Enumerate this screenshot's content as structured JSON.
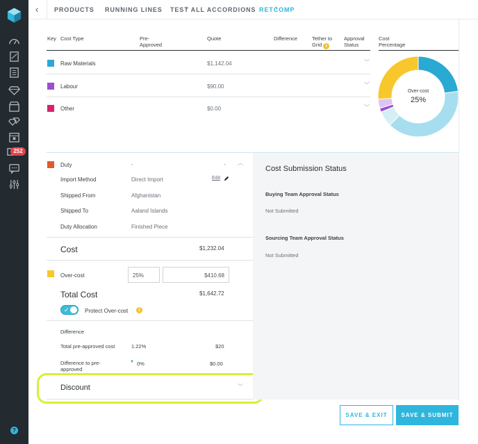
{
  "breadcrumb": {
    "items": [
      "PRODUCTS",
      "RUNNING LINES",
      "TEST ALL ACCORDIONS",
      "RETCOMP"
    ]
  },
  "sidebar": {
    "icons": [
      "dashboard-icon",
      "reports-icon",
      "catalog-icon",
      "diamond-icon",
      "store-icon",
      "gems-icon",
      "calendar-icon",
      "inbox-icon",
      "chat-icon",
      "sliders-icon"
    ],
    "badge_count": "252",
    "help": "?"
  },
  "table": {
    "headers": {
      "key": "Key",
      "cost_type": "Cost Type",
      "pre_approved": "Pre-Approved",
      "quote": "Quote",
      "difference": "Difference",
      "tether": "Tether to Grid",
      "approval": "Approval Status",
      "cost_percentage": "Cost Percentage"
    },
    "rows": [
      {
        "name": "Raw Materials",
        "quote": "$1,142.04",
        "color": "#2aa9d2"
      },
      {
        "name": "Labour",
        "quote": "$90.00",
        "color": "#9a4fd1"
      },
      {
        "name": "Other",
        "quote": "$0.00",
        "color": "#d6246b"
      }
    ]
  },
  "donut": {
    "center_label": "Over-cost",
    "center_value": "25%",
    "segments": [
      {
        "label": "Raw Materials",
        "pct": 22,
        "color": "#2aa9d2"
      },
      {
        "label": "Raw Materials (light)",
        "pct": 38,
        "color": "#a6def0"
      },
      {
        "label": "Gap",
        "pct": 6,
        "color": "#d5eef6"
      },
      {
        "label": "Labour",
        "pct": 1.5,
        "color": "#9a4fd1"
      },
      {
        "label": "Labour (light)",
        "pct": 3.5,
        "color": "#dcc6f1"
      },
      {
        "label": "Over-cost",
        "pct": 25,
        "color": "#f8c72c"
      }
    ]
  },
  "duty": {
    "label": "Duty",
    "color": "#e05a2b",
    "pre_approved": "-",
    "quote": "-",
    "fields": [
      {
        "label": "Import Method",
        "value": "Direct Import"
      },
      {
        "label": "Shipped From",
        "value": "Afghanistan"
      },
      {
        "label": "Shipped To",
        "value": "Aaland Islands"
      },
      {
        "label": "Duty Allocation",
        "value": "Finished Piece"
      }
    ],
    "edit_label": "Edit"
  },
  "cost": {
    "label": "Cost",
    "value": "$1,232.04"
  },
  "overcost": {
    "label": "Over-cost",
    "color": "#f8c72c",
    "percent": "25%",
    "amount": "$410.68"
  },
  "total": {
    "label": "Total Cost",
    "value": "$1,642.72"
  },
  "protect": {
    "label": "Protect Over-cost",
    "checked": true
  },
  "difference": {
    "title": "Difference",
    "rows": [
      {
        "label": "Total pre-approved cost",
        "pct": "1.22%",
        "amount": "$20"
      },
      {
        "label": "Difference to pre-approved",
        "pct": "0%",
        "amount": "$0.00"
      }
    ]
  },
  "discount": {
    "label": "Discount"
  },
  "status": {
    "title": "Cost Submission Status",
    "buying_label": "Buying Team Approval Status",
    "buying_value": "Not Submitted",
    "sourcing_label": "Sourcing Team Approval Status",
    "sourcing_value": "Not Submitted"
  },
  "buttons": {
    "save_exit": "SAVE & EXIT",
    "save_submit": "SAVE & SUBMIT"
  },
  "colors": {
    "accent": "#2fb6dd",
    "rail": "#232a30",
    "highlight": "#d8ee3a"
  }
}
